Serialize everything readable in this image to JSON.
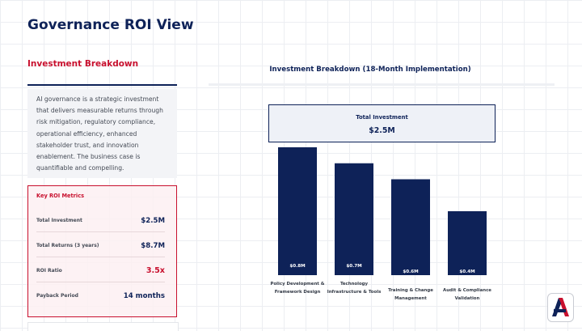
{
  "page": {
    "title": "Governance ROI View"
  },
  "left": {
    "section_title": "Investment Breakdown",
    "intro": "AI governance is a strategic investment that delivers measurable returns through risk mitigation, regulatory compliance, operational efficiency, enhanced stakeholder trust, and innovation enablement. The business case is quantifiable and compelling.",
    "metrics": {
      "title": "Key ROI Metrics",
      "rows": [
        {
          "label": "Total Investment",
          "value": "$2.5M"
        },
        {
          "label": "Total Returns (3 years)",
          "value": "$8.7M"
        },
        {
          "label": "ROI Ratio",
          "value": "3.5x"
        },
        {
          "label": "Payback Period",
          "value": "14 months"
        }
      ]
    }
  },
  "chart": {
    "total_label": "Total Investment",
    "total_value": "$2.5M"
  },
  "chart_data": {
    "type": "bar",
    "title": "Investment Breakdown (18-Month Implementation)",
    "categories": [
      [
        "Policy Development &",
        "Framework Design"
      ],
      [
        "Technology",
        "Infrastructure & Tools"
      ],
      [
        "Training & Change",
        "Management"
      ],
      [
        "Audit & Compliance",
        "Validation"
      ]
    ],
    "values": [
      0.8,
      0.7,
      0.6,
      0.4
    ],
    "value_labels": [
      "$0.8M",
      "$0.7M",
      "$0.6M",
      "$0.4M"
    ],
    "unit": "$M",
    "ylim": [
      0,
      0.8
    ],
    "grid": false,
    "legend": "none"
  },
  "colors": {
    "navy": "#0e2258",
    "accent_red": "#c8102e",
    "bar": "#0e2258"
  }
}
